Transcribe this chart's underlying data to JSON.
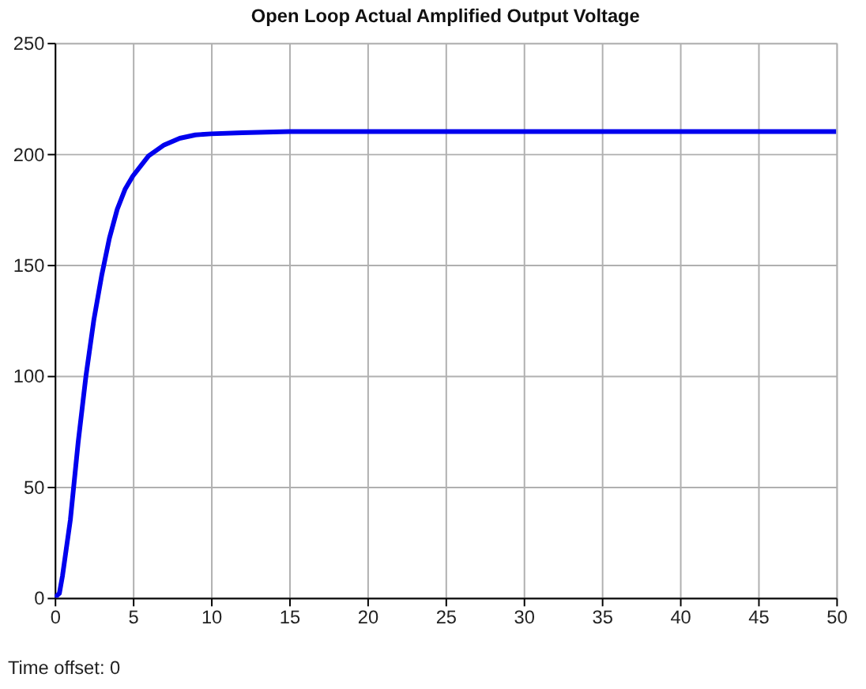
{
  "chart_data": {
    "type": "line",
    "title": "Open Loop Actual Amplified Output Voltage",
    "x": [
      0,
      0.3,
      0.5,
      1,
      1.5,
      2,
      2.5,
      3,
      3.5,
      4,
      4.5,
      5,
      6,
      7,
      8,
      9,
      10,
      12,
      15,
      20,
      30,
      40,
      50
    ],
    "series": [
      {
        "color": "#0000ee",
        "values": [
          0,
          2,
          10,
          35,
          70,
          100,
          125,
          145,
          162,
          175,
          184,
          190,
          199,
          204,
          207,
          208.5,
          209,
          209.5,
          210,
          210,
          210,
          210,
          210
        ]
      }
    ],
    "xlim": [
      0,
      50
    ],
    "xticks": [
      0,
      5,
      10,
      15,
      20,
      25,
      30,
      35,
      40,
      45,
      50
    ],
    "ylim": [
      0,
      250
    ],
    "yticks": [
      0,
      50,
      100,
      150,
      200,
      250
    ],
    "grid": true,
    "marker": "none",
    "line_style": "solid",
    "annotations": [
      "Time offset:  0"
    ]
  }
}
